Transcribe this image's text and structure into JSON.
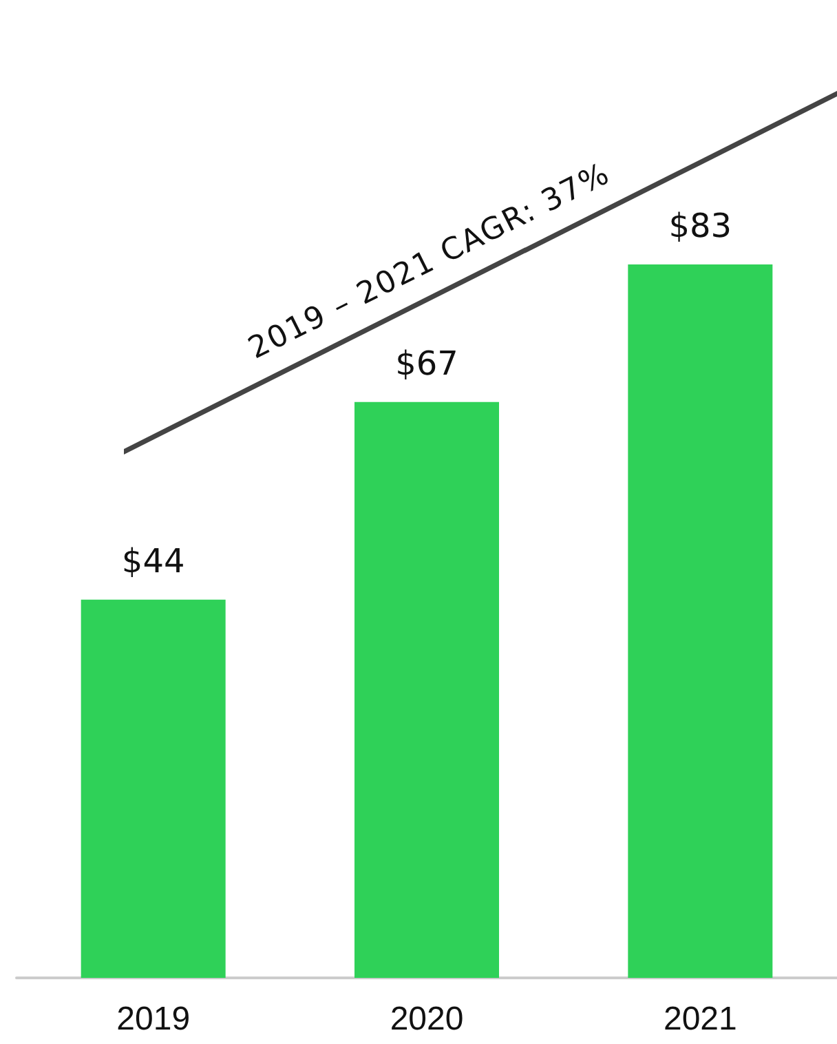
{
  "chart_data": {
    "type": "bar",
    "categories": [
      "2019",
      "2020",
      "2021"
    ],
    "values": [
      44,
      67,
      83
    ],
    "color": "#2fd158",
    "value_labels": [
      "$44",
      "$67",
      "$83"
    ],
    "annotations": [
      "2019 – 2021 CAGR: 37%"
    ]
  }
}
